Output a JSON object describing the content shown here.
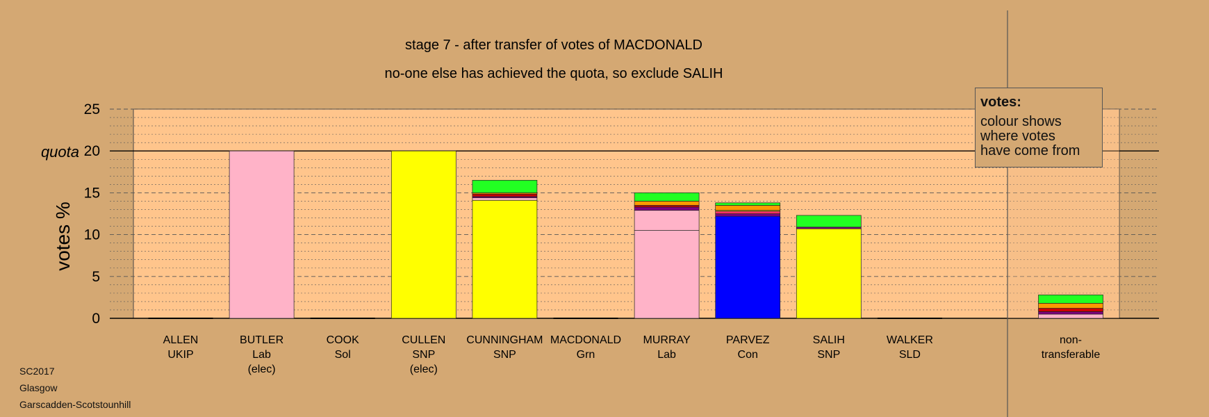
{
  "chart_data": {
    "type": "bar",
    "title": "stage 7 - after transfer of votes of MACDONALD",
    "subtitle": "no-one else has achieved the quota, so exclude SALIH",
    "ylabel": "votes %",
    "quota_label": "quota",
    "quota": 20,
    "ylim": [
      0,
      25
    ],
    "yticks": [
      0,
      5,
      10,
      15,
      20,
      25
    ],
    "grid": "dashed horizontal",
    "candidates": [
      {
        "name": "ALLEN",
        "party": "UKIP",
        "note": "",
        "segments": []
      },
      {
        "name": "BUTLER",
        "party": "Lab",
        "note": "(elec)",
        "segments": [
          {
            "color": "#ffb3c8",
            "value": 20
          }
        ]
      },
      {
        "name": "COOK",
        "party": "Sol",
        "note": "",
        "segments": []
      },
      {
        "name": "CULLEN",
        "party": "SNP",
        "note": "(elec)",
        "segments": [
          {
            "color": "#ffff00",
            "value": 20
          }
        ]
      },
      {
        "name": "CUNNINGHAM",
        "party": "SNP",
        "note": "",
        "segments": [
          {
            "color": "#ffff00",
            "value": 14.1
          },
          {
            "color": "#ffb3c8",
            "value": 0.3
          },
          {
            "color": "#800080",
            "value": 0.15
          },
          {
            "color": "#cc0000",
            "value": 0.3
          },
          {
            "color": "#ff9900",
            "value": 0.15
          },
          {
            "color": "#22ff22",
            "value": 1.5
          }
        ]
      },
      {
        "name": "MACDONALD",
        "party": "Grn",
        "note": "",
        "segments": []
      },
      {
        "name": "MURRAY",
        "party": "Lab",
        "note": "",
        "segments": [
          {
            "color": "#ffb3c8",
            "value": 10.5
          },
          {
            "color": "#ffb3c8",
            "value": 2.4
          },
          {
            "color": "#800080",
            "value": 0.4
          },
          {
            "color": "#cc0000",
            "value": 0.2
          },
          {
            "color": "#ff9900",
            "value": 0.5
          },
          {
            "color": "#22ff22",
            "value": 1.0
          }
        ]
      },
      {
        "name": "PARVEZ",
        "party": "Con",
        "note": "",
        "segments": [
          {
            "color": "#0000ff",
            "value": 12.2
          },
          {
            "color": "#800080",
            "value": 0.3
          },
          {
            "color": "#ff3366",
            "value": 0.3
          },
          {
            "color": "#ffff00",
            "value": 0.1
          },
          {
            "color": "#ff9900",
            "value": 0.6
          },
          {
            "color": "#22ff22",
            "value": 0.3
          }
        ]
      },
      {
        "name": "SALIH",
        "party": "SNP",
        "note": "",
        "segments": [
          {
            "color": "#ffff00",
            "value": 10.7
          },
          {
            "color": "#800080",
            "value": 0.2
          },
          {
            "color": "#22ff22",
            "value": 1.4
          }
        ]
      },
      {
        "name": "WALKER",
        "party": "SLD",
        "note": "",
        "segments": []
      }
    ],
    "nontransferable": {
      "label1": "non-",
      "label2": "transferable",
      "segments": [
        {
          "color": "#ffb3c8",
          "value": 0.5
        },
        {
          "color": "#800080",
          "value": 0.3
        },
        {
          "color": "#cc0000",
          "value": 0.4
        },
        {
          "color": "#ff9900",
          "value": 0.6
        },
        {
          "color": "#22ff22",
          "value": 1.0
        }
      ]
    },
    "legend": {
      "title": "votes:",
      "lines": [
        "colour shows",
        "where votes",
        "have come from"
      ],
      "placement": "top-right"
    }
  },
  "footer": {
    "line1": "SC2017",
    "line2": "Glasgow",
    "line3": "Garscadden-Scotstounhill"
  }
}
